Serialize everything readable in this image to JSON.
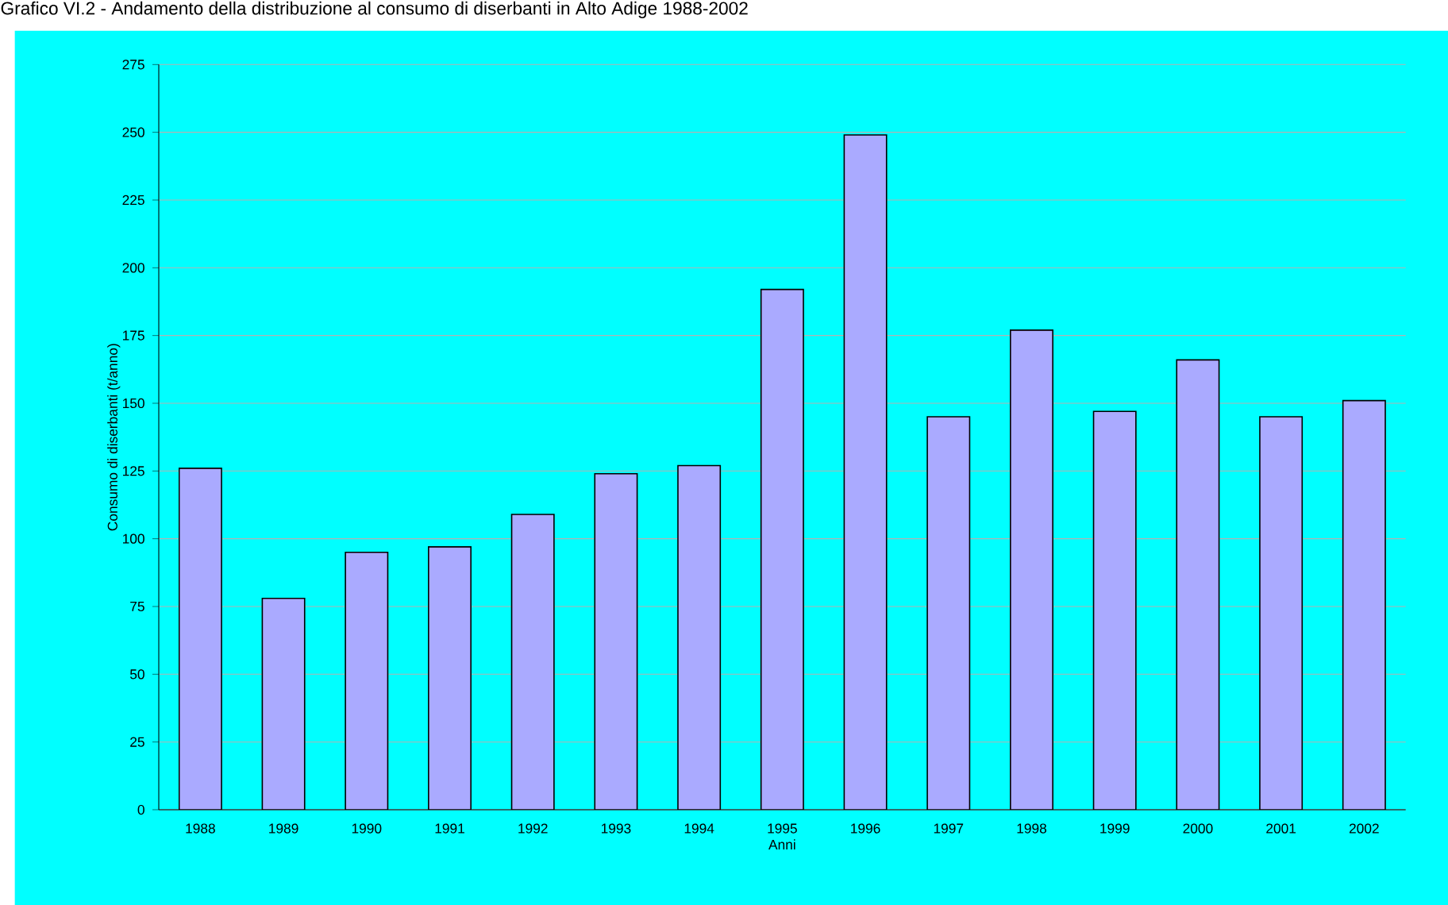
{
  "chart_data": {
    "type": "bar",
    "title": "Grafico VI.2 - Andamento della distribuzione al consumo di diserbanti in Alto Adige 1988-2002",
    "xlabel": "Anni",
    "ylabel": "Consumo di diserbanti (t/anno)",
    "categories": [
      "1988",
      "1989",
      "1990",
      "1991",
      "1992",
      "1993",
      "1994",
      "1995",
      "1996",
      "1997",
      "1998",
      "1999",
      "2000",
      "2001",
      "2002"
    ],
    "values": [
      126,
      78,
      95,
      97,
      109,
      124,
      127,
      192,
      249,
      145,
      177,
      147,
      166,
      145,
      151
    ],
    "color": "#aaaaff",
    "ylim": [
      0,
      275
    ],
    "yticks": [
      0,
      25,
      50,
      75,
      100,
      125,
      150,
      175,
      200,
      225,
      250,
      275
    ],
    "grid": "y"
  }
}
